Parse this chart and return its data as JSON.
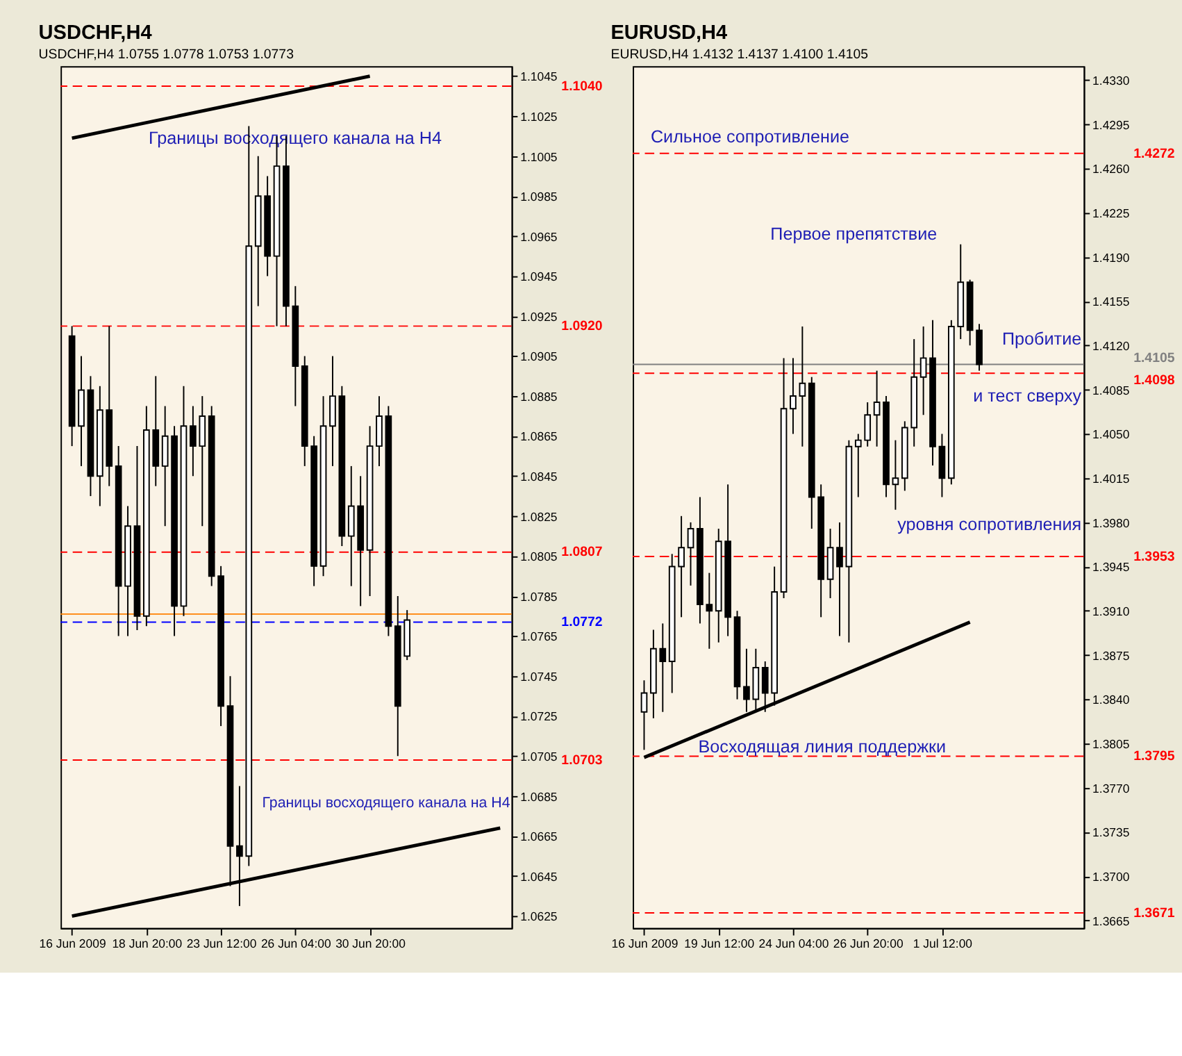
{
  "chart_data": [
    {
      "type": "candlestick",
      "title": "USDCHF,H4",
      "subtitle": "USDCHF,H4  1.0755 1.0778 1.0753 1.0773",
      "categories": [
        "16 Jun 2009",
        null,
        null,
        null,
        null,
        null,
        null,
        null,
        "18 Jun 20:00",
        null,
        null,
        null,
        null,
        null,
        null,
        null,
        "23 Jun 12:00",
        null,
        null,
        null,
        null,
        null,
        null,
        null,
        "26 Jun 04:00",
        null,
        null,
        null,
        null,
        null,
        null,
        null,
        "30 Jun 20:00",
        null,
        null,
        null,
        null,
        null,
        null,
        null,
        null,
        null,
        null,
        null,
        null,
        null,
        null
      ],
      "ohlc": [
        [
          1.0915,
          1.092,
          1.086,
          1.087
        ],
        [
          1.087,
          1.0905,
          1.085,
          1.0888
        ],
        [
          1.0888,
          1.0895,
          1.0835,
          1.0845
        ],
        [
          1.0845,
          1.089,
          1.083,
          1.0878
        ],
        [
          1.0878,
          1.092,
          1.084,
          1.085
        ],
        [
          1.085,
          1.086,
          1.0765,
          1.079
        ],
        [
          1.079,
          1.083,
          1.0765,
          1.082
        ],
        [
          1.082,
          1.086,
          1.0768,
          1.0775
        ],
        [
          1.0775,
          1.088,
          1.077,
          1.0868
        ],
        [
          1.0868,
          1.0895,
          1.084,
          1.085
        ],
        [
          1.085,
          1.088,
          1.082,
          1.0865
        ],
        [
          1.0865,
          1.087,
          1.0765,
          1.078
        ],
        [
          1.078,
          1.089,
          1.0775,
          1.087
        ],
        [
          1.087,
          1.088,
          1.0845,
          1.086
        ],
        [
          1.086,
          1.0885,
          1.082,
          1.0875
        ],
        [
          1.0875,
          1.088,
          1.079,
          1.0795
        ],
        [
          1.0795,
          1.08,
          1.072,
          1.073
        ],
        [
          1.073,
          1.0745,
          1.064,
          1.066
        ],
        [
          1.066,
          1.069,
          1.063,
          1.0655
        ],
        [
          1.0655,
          1.102,
          1.065,
          1.096
        ],
        [
          1.096,
          1.1005,
          1.093,
          1.0985
        ],
        [
          1.0985,
          1.0995,
          1.0945,
          1.0955
        ],
        [
          1.0955,
          1.1015,
          1.092,
          1.1
        ],
        [
          1.1,
          1.1015,
          1.092,
          1.093
        ],
        [
          1.093,
          1.094,
          1.088,
          1.09
        ],
        [
          1.09,
          1.0905,
          1.085,
          1.086
        ],
        [
          1.086,
          1.0865,
          1.079,
          1.08
        ],
        [
          1.08,
          1.0885,
          1.0795,
          1.087
        ],
        [
          1.087,
          1.0905,
          1.085,
          1.0885
        ],
        [
          1.0885,
          1.089,
          1.081,
          1.0815
        ],
        [
          1.0815,
          1.085,
          1.079,
          1.083
        ],
        [
          1.083,
          1.0845,
          1.078,
          1.0808
        ],
        [
          1.0808,
          1.087,
          1.0785,
          1.086
        ],
        [
          1.086,
          1.0885,
          1.085,
          1.0875
        ],
        [
          1.0875,
          1.088,
          1.0765,
          1.077
        ],
        [
          1.077,
          1.0785,
          1.0705,
          1.073
        ],
        [
          1.0755,
          1.0778,
          1.0753,
          1.0773
        ],
        null,
        null,
        null,
        null,
        null,
        null,
        null,
        null,
        null,
        null
      ],
      "series": [
        {
          "type": "line",
          "color": "#000000",
          "values": [
            1.1014,
            null,
            null,
            null,
            null,
            null,
            null,
            null,
            null,
            null,
            null,
            null,
            null,
            null,
            null,
            null,
            null,
            null,
            null,
            null,
            null,
            null,
            null,
            null,
            null,
            null,
            null,
            null,
            null,
            null,
            null,
            null,
            1.1045,
            null,
            null,
            null,
            null,
            null,
            null,
            null,
            null,
            null,
            null,
            null,
            null,
            null,
            null
          ]
        },
        {
          "type": "line",
          "color": "#000000",
          "values": [
            1.0625,
            null,
            null,
            null,
            null,
            null,
            null,
            null,
            null,
            null,
            null,
            null,
            null,
            null,
            null,
            null,
            null,
            null,
            null,
            null,
            null,
            null,
            null,
            null,
            null,
            null,
            null,
            null,
            null,
            null,
            null,
            null,
            null,
            null,
            null,
            null,
            null,
            null,
            null,
            null,
            null,
            null,
            null,
            null,
            null,
            null,
            1.0669
          ]
        }
      ],
      "ylim": [
        1.0619,
        1.105
      ],
      "yticks": [
        1.0625,
        1.0645,
        1.0665,
        1.0685,
        1.0705,
        1.0725,
        1.0745,
        1.0765,
        1.0785,
        1.0805,
        1.0825,
        1.0845,
        1.0865,
        1.0885,
        1.0905,
        1.0925,
        1.0945,
        1.0965,
        1.0985,
        1.1005,
        1.1025,
        1.1045
      ],
      "ref_lines": [
        {
          "axis": "y",
          "value": 1.104,
          "label": "1.1040",
          "color": "#ff0000",
          "line_style": "dashed"
        },
        {
          "axis": "y",
          "value": 1.092,
          "label": "1.0920",
          "color": "#ff0000",
          "line_style": "dashed"
        },
        {
          "axis": "y",
          "value": 1.0807,
          "label": "1.0807",
          "color": "#ff0000",
          "line_style": "dashed"
        },
        {
          "axis": "y",
          "value": 1.0703,
          "label": "1.0703",
          "color": "#ff0000",
          "line_style": "dashed"
        },
        {
          "axis": "y",
          "value": 1.0776,
          "label": null,
          "color": "#ff8000",
          "line_style": "solid"
        },
        {
          "axis": "y",
          "value": 1.0772,
          "label": "1.0772",
          "color": "#0000ff",
          "line_style": "dashed"
        }
      ],
      "annotations": [
        "Границы восходящего канала на H4",
        "Границы восходящего канала на H4"
      ]
    },
    {
      "type": "candlestick",
      "title": "EURUSD,H4",
      "subtitle": "EURUSD,H4  1.4132 1.4137 1.4100 1.4105",
      "categories": [
        "16 Jun 2009",
        null,
        null,
        null,
        null,
        null,
        null,
        null,
        "19 Jun 12:00",
        null,
        null,
        null,
        null,
        null,
        null,
        null,
        "24 Jun 04:00",
        null,
        null,
        null,
        null,
        null,
        null,
        null,
        "26 Jun 20:00",
        null,
        null,
        null,
        null,
        null,
        null,
        null,
        "1 Jul 12:00",
        null,
        null,
        null,
        null,
        null,
        null,
        null,
        null,
        null,
        null,
        null,
        null,
        null,
        null
      ],
      "ohlc": [
        [
          1.383,
          1.3855,
          1.38,
          1.3845
        ],
        [
          1.3845,
          1.3895,
          1.3825,
          1.388
        ],
        [
          1.388,
          1.39,
          1.383,
          1.387
        ],
        [
          1.387,
          1.3955,
          1.3845,
          1.3945
        ],
        [
          1.3945,
          1.3985,
          1.3905,
          1.396
        ],
        [
          1.396,
          1.398,
          1.393,
          1.3975
        ],
        [
          1.3975,
          1.4,
          1.39,
          1.3915
        ],
        [
          1.3915,
          1.394,
          1.388,
          1.391
        ],
        [
          1.391,
          1.3975,
          1.3885,
          1.3965
        ],
        [
          1.3965,
          1.401,
          1.389,
          1.3905
        ],
        [
          1.3905,
          1.391,
          1.384,
          1.385
        ],
        [
          1.385,
          1.388,
          1.383,
          1.384
        ],
        [
          1.384,
          1.388,
          1.383,
          1.3865
        ],
        [
          1.3865,
          1.387,
          1.383,
          1.3845
        ],
        [
          1.3845,
          1.3945,
          1.3835,
          1.3925
        ],
        [
          1.3925,
          1.411,
          1.392,
          1.407
        ],
        [
          1.407,
          1.411,
          1.405,
          1.408
        ],
        [
          1.408,
          1.4135,
          1.404,
          1.409
        ],
        [
          1.409,
          1.4095,
          1.3975,
          1.4
        ],
        [
          1.4,
          1.401,
          1.3905,
          1.3935
        ],
        [
          1.3935,
          1.3975,
          1.392,
          1.396
        ],
        [
          1.396,
          1.398,
          1.389,
          1.3945
        ],
        [
          1.3945,
          1.4045,
          1.3885,
          1.404
        ],
        [
          1.404,
          1.405,
          1.4,
          1.4045
        ],
        [
          1.4045,
          1.4075,
          1.404,
          1.4065
        ],
        [
          1.4065,
          1.41,
          1.404,
          1.4075
        ],
        [
          1.4075,
          1.408,
          1.4,
          1.401
        ],
        [
          1.401,
          1.4045,
          1.399,
          1.4015
        ],
        [
          1.4015,
          1.406,
          1.4005,
          1.4055
        ],
        [
          1.4055,
          1.4125,
          1.404,
          1.4095
        ],
        [
          1.4095,
          1.4135,
          1.4065,
          1.411
        ],
        [
          1.411,
          1.414,
          1.4025,
          1.404
        ],
        [
          1.404,
          1.405,
          1.4,
          1.4015
        ],
        [
          1.4015,
          1.414,
          1.401,
          1.4135
        ],
        [
          1.4135,
          1.42,
          1.4125,
          1.417
        ],
        [
          1.417,
          1.4172,
          1.412,
          1.4132
        ],
        [
          1.4132,
          1.4137,
          1.41,
          1.4105
        ],
        null,
        null,
        null,
        null,
        null,
        null,
        null,
        null,
        null,
        null
      ],
      "series": [
        {
          "type": "line",
          "color": "#000000",
          "values": [
            1.3794,
            null,
            null,
            null,
            null,
            null,
            null,
            null,
            null,
            null,
            null,
            null,
            null,
            null,
            null,
            null,
            null,
            null,
            null,
            null,
            null,
            null,
            null,
            null,
            null,
            null,
            null,
            null,
            null,
            null,
            null,
            null,
            null,
            null,
            null,
            1.3901,
            null,
            null,
            null,
            null,
            null,
            null,
            null,
            null,
            null,
            null,
            null
          ]
        }
      ],
      "ylim": [
        1.3659,
        1.4341
      ],
      "yticks": [
        1.3665,
        {
          "value": 1.37,
          "label": "1.3700"
        },
        1.3735,
        {
          "value": 1.377,
          "label": "1.3770"
        },
        1.3805,
        {
          "value": 1.384,
          "label": "1.3840"
        },
        1.3875,
        {
          "value": 1.391,
          "label": "1.3910"
        },
        1.3945,
        {
          "value": 1.398,
          "label": "1.3980"
        },
        1.4015,
        {
          "value": 1.405,
          "label": "1.4050"
        },
        1.4085,
        {
          "value": 1.412,
          "label": "1.4120"
        },
        1.4155,
        {
          "value": 1.419,
          "label": "1.4190"
        },
        1.4225,
        {
          "value": 1.426,
          "label": "1.4260"
        },
        1.4295,
        {
          "value": 1.433,
          "label": "1.4330"
        }
      ],
      "ref_lines": [
        {
          "axis": "y",
          "value": 1.4272,
          "label": "1.4272",
          "color": "#ff0000",
          "line_style": "dashed"
        },
        {
          "axis": "y",
          "value": 1.4105,
          "label": "1.4105",
          "color": "#808080",
          "line_style": "solid"
        },
        {
          "axis": "y",
          "value": 1.4098,
          "label": "1.4098",
          "color": "#ff0000",
          "line_style": "dashed"
        },
        {
          "axis": "y",
          "value": 1.3953,
          "label": "1.3953",
          "color": "#ff0000",
          "line_style": "dashed"
        },
        {
          "axis": "y",
          "value": 1.3795,
          "label": "1.3795",
          "color": "#ff0000",
          "line_style": "dashed"
        },
        {
          "axis": "y",
          "value": 1.3671,
          "label": "1.3671",
          "color": "#ff0000",
          "line_style": "dashed"
        }
      ],
      "annotations": [
        "Сильное сопротивление",
        "Первое препятствие",
        "Пробитие",
        "и тест сверху",
        "уровня сопротивления",
        "Восходящая линия поддержки"
      ]
    }
  ]
}
